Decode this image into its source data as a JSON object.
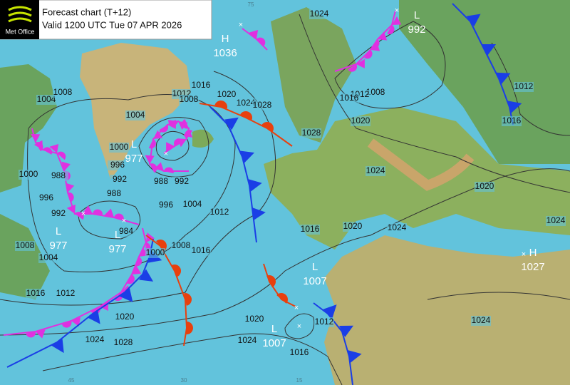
{
  "header": {
    "logo": "Met Office",
    "title": "Forecast chart (T+12)",
    "valid": "Valid 1200 UTC Tue 07 APR 2026"
  },
  "centers": [
    {
      "letter": "H",
      "value": 1036
    },
    {
      "letter": "L",
      "value": 992
    },
    {
      "letter": "L",
      "value": 977
    },
    {
      "letter": "L",
      "value": 977
    },
    {
      "letter": "L",
      "value": 977
    },
    {
      "letter": "L",
      "value": 1007
    },
    {
      "letter": "L",
      "value": 1007
    },
    {
      "letter": "H",
      "value": 1027
    }
  ],
  "isobar_labels": [
    1004,
    1008,
    1004,
    1012,
    1008,
    1016,
    1020,
    1024,
    1028,
    1000,
    996,
    992,
    988,
    1000,
    988,
    996,
    992,
    1008,
    1004,
    984,
    1000,
    996,
    1004,
    1012,
    1016,
    1008,
    988,
    992,
    1016,
    1012,
    1020,
    1024,
    1028,
    1020,
    1024,
    1016,
    1012,
    1016,
    1020,
    1024,
    1024,
    1020,
    1024,
    1024,
    1012,
    1016,
    1008,
    1012,
    1016,
    1020,
    1028,
    1024
  ],
  "grid_labels": [
    "75",
    "45",
    "30",
    "15"
  ]
}
